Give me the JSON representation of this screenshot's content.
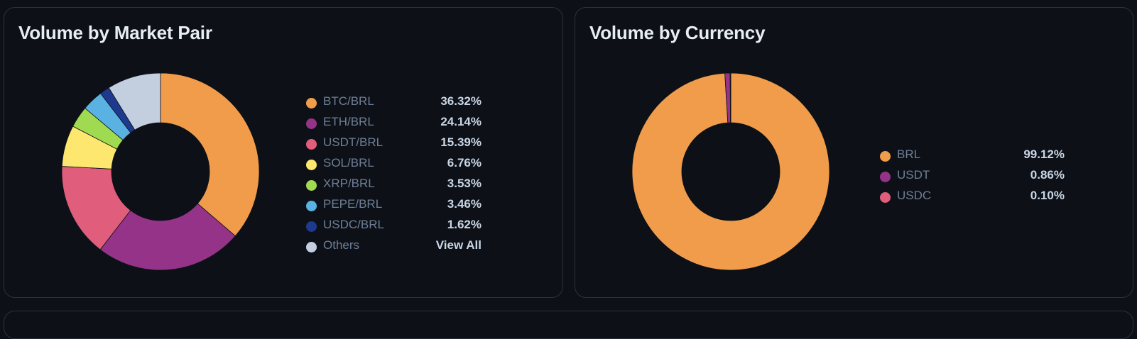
{
  "chart_data": [
    {
      "type": "pie",
      "title": "Volume by Market Pair",
      "categories": [
        "BTC/BRL",
        "ETH/BRL",
        "USDT/BRL",
        "SOL/BRL",
        "XRP/BRL",
        "PEPE/BRL",
        "USDC/BRL",
        "Others"
      ],
      "values": [
        36.32,
        24.14,
        15.39,
        6.76,
        3.53,
        3.46,
        1.62,
        8.78
      ],
      "value_labels": [
        "36.32%",
        "24.14%",
        "15.39%",
        "6.76%",
        "3.53%",
        "3.46%",
        "1.62%",
        "View All"
      ],
      "colors": [
        "#f09c4b",
        "#943388",
        "#e05e7c",
        "#fde76e",
        "#a0da51",
        "#5ab2e2",
        "#1d3a8e",
        "#c3cfde"
      ]
    },
    {
      "type": "pie",
      "title": "Volume by Currency",
      "categories": [
        "BRL",
        "USDT",
        "USDC"
      ],
      "values": [
        99.12,
        0.86,
        0.1
      ],
      "value_labels": [
        "99.12%",
        "0.86%",
        "0.10%"
      ],
      "colors": [
        "#f09c4b",
        "#943388",
        "#e05e7c"
      ]
    }
  ]
}
